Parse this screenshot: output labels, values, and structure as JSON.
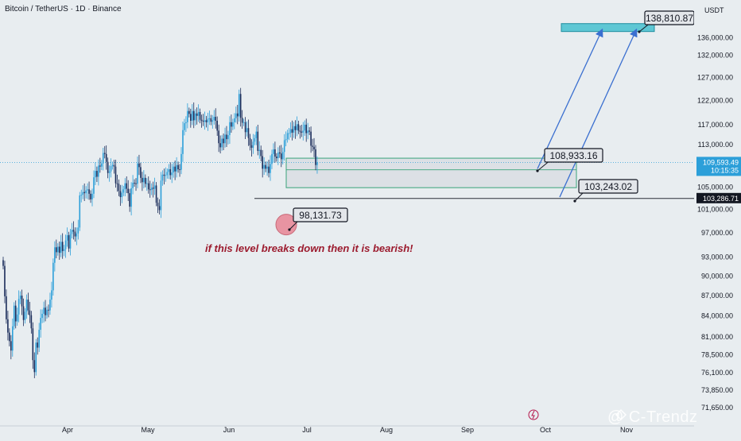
{
  "header": {
    "title": "Bitcoin / TetherUS · 1D · Binance",
    "currency": "USDT"
  },
  "watermark": "@ C-Trendz",
  "colors": {
    "bg": "#e8edf0",
    "up": "#2c9fd9",
    "down": "#1a2c5a",
    "zone_border": "#3aa37a",
    "target_fill": "#5ec7d4",
    "arrow": "#3a6fd0",
    "note": "#9c1b2e",
    "circle": "#e88b9a"
  },
  "chart_data": {
    "type": "candlestick",
    "title": "Bitcoin / TetherUS · 1D · Binance",
    "x_tick_labels": [
      "Apr",
      "May",
      "Jun",
      "Jul",
      "Aug",
      "Sep",
      "Oct",
      "Nov"
    ],
    "y_tick_labels": [
      "136,000.00",
      "132,000.00",
      "127,000.00",
      "122,000.00",
      "117,000.00",
      "113,000.00",
      "105,000.00",
      "101,000.00",
      "97,000.00",
      "93,000.00",
      "90,000.00",
      "87,000.00",
      "84,000.00",
      "81,000.00",
      "78,500.00",
      "76,100.00",
      "73,850.00",
      "71,650.00"
    ],
    "y_ticks": [
      136000,
      132000,
      127000,
      122000,
      117000,
      113000,
      105000,
      101000,
      97000,
      93000,
      90000,
      87000,
      84000,
      81000,
      78500,
      76100,
      73850,
      71650
    ],
    "scale": "log",
    "ylim": [
      69800,
      140500
    ],
    "current_price": {
      "value": "109,593.49",
      "countdown": "10:15:35"
    },
    "support_line": {
      "value": "103,286.71"
    },
    "annotations": {
      "target": "138,810.87",
      "resistance": "108,933.16",
      "support": "103,243.02",
      "low": "98,131.73",
      "note": "if this level breaks down then it is bearish!"
    },
    "demand_zone": {
      "low": 104900,
      "high": 110400
    },
    "target_zone": {
      "low": 137500,
      "high": 139400
    },
    "closes": [
      91600,
      86900,
      83500,
      81600,
      80400,
      79100,
      82500,
      85500,
      83200,
      84200,
      86500,
      87000,
      85400,
      83400,
      84600,
      86400,
      84800,
      84100,
      82200,
      77800,
      76200,
      80200,
      79500,
      82000,
      83700,
      84300,
      85200,
      84100,
      84900,
      84800,
      86400,
      87800,
      92100,
      94600,
      93800,
      94700,
      93700,
      95500,
      94000,
      94300,
      95700,
      96600,
      94400,
      96800,
      97500,
      97200,
      96400,
      96900,
      97900,
      103500,
      103600,
      104100,
      103900,
      104400,
      104600,
      103800,
      102800,
      103800,
      106800,
      108000,
      106900,
      109000,
      108800,
      109400,
      111400,
      111200,
      109700,
      107600,
      107900,
      108900,
      109100,
      108800,
      105700,
      105600,
      104300,
      103200,
      104000,
      104600,
      105700,
      104700,
      103900,
      101500,
      104800,
      105800,
      105700,
      105600,
      109400,
      108700,
      106700,
      105900,
      106700,
      105600,
      105700,
      104600,
      104500,
      104900,
      104700,
      105300,
      102200,
      101600,
      100900,
      106200,
      107300,
      107100,
      107200,
      107800,
      108300,
      107200,
      107700,
      108800,
      107900,
      109100,
      108300,
      108200,
      111200,
      115900,
      117300,
      117500,
      119800,
      119200,
      117800,
      119800,
      117900,
      119300,
      118800,
      119600,
      118000,
      117800,
      117600,
      117900,
      117500,
      118200,
      118300,
      117600,
      117900,
      118600,
      117800,
      115800,
      113300,
      112500,
      114200,
      113300,
      115000,
      114100,
      114900,
      117500,
      116600,
      117500,
      118300,
      119300,
      118700,
      123400,
      118400,
      117400,
      117500,
      115500,
      116300,
      114300,
      112900,
      112400,
      113600,
      114300,
      115600,
      111800,
      112000,
      110800,
      108400,
      109100,
      108400,
      108800,
      107600,
      109300,
      111200,
      112100,
      110700,
      110400,
      111500,
      111300,
      110200,
      111600,
      113900,
      114100,
      115300,
      115300,
      116100,
      115400,
      116700,
      115900,
      117100,
      115800,
      115600,
      115400,
      115800,
      117000,
      115300,
      115800,
      115600,
      112800,
      112600,
      112100,
      109100,
      109600
    ]
  }
}
